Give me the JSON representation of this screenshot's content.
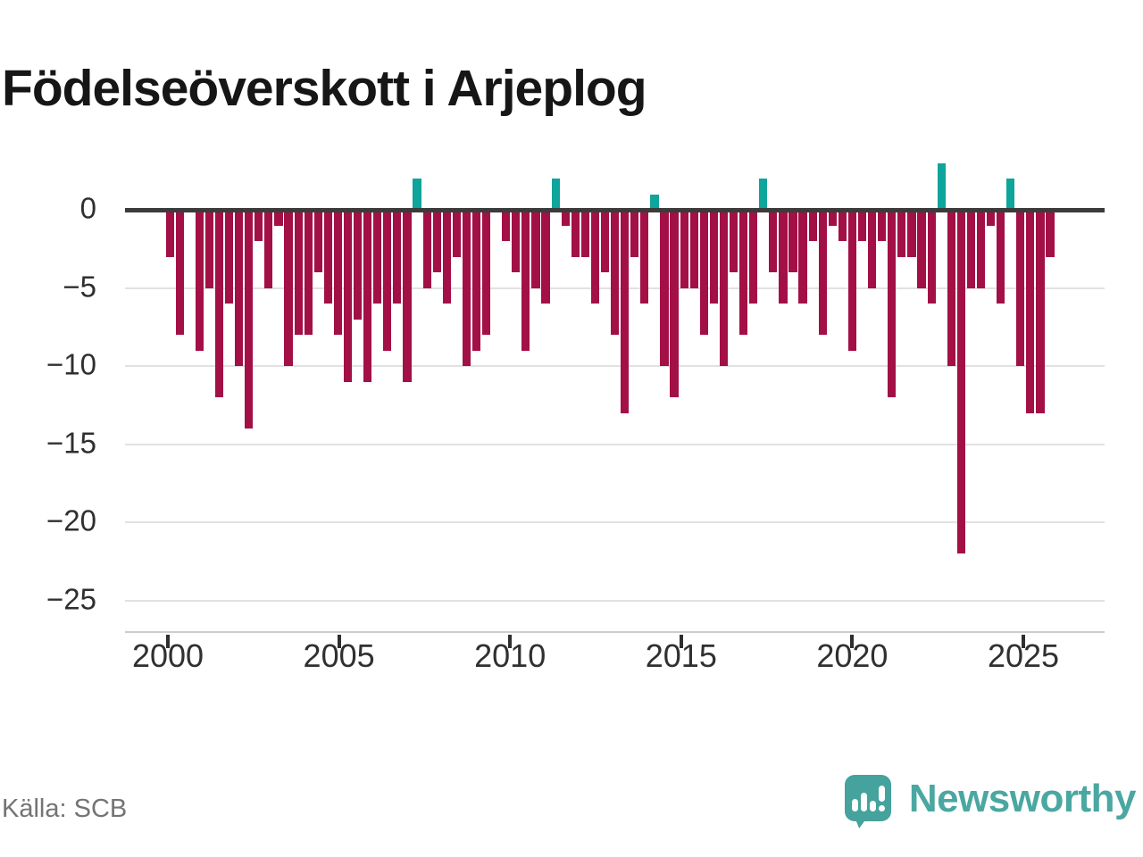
{
  "title": "Födelseöverskott i Arjeplog",
  "source_label": "Källa: SCB",
  "brand": {
    "name": "Newsworthy",
    "icon": "newsworthy-speech-bubble-bar-chart-icon",
    "icon_color": "#45a29c",
    "wordmark_color": "#4aa7a1"
  },
  "colors": {
    "negative_bar": "#a31045",
    "positive_bar": "#0da59c",
    "zero_line": "#3b3b3b",
    "gridline": "#e1e1e1",
    "axis_line": "#cdcdcd",
    "axis_text": "#303030",
    "title_text": "#161616",
    "source_text": "#747474"
  },
  "chart_data": {
    "type": "bar",
    "title": "Födelseöverskott i Arjeplog",
    "xlabel": "",
    "ylabel": "",
    "x_range_years": [
      2000,
      2026.3
    ],
    "ylim": [
      -25,
      3.5
    ],
    "grid": "horizontal",
    "legend": "none",
    "y_ticks": [
      0,
      -5,
      -10,
      -15,
      -20,
      -25
    ],
    "y_tick_labels": [
      "0",
      "−5",
      "−10",
      "−15",
      "−20",
      "−25"
    ],
    "x_tick_years": [
      2000,
      2005,
      2010,
      2015,
      2020,
      2025
    ],
    "x_tick_labels": [
      "2000",
      "2005",
      "2010",
      "2015",
      "2020",
      "2025"
    ],
    "series": [
      {
        "name": "Födelseöverskott",
        "values": [
          -3,
          -8,
          0,
          -9,
          -5,
          -12,
          -6,
          -10,
          -14,
          -2,
          -5,
          -1,
          -10,
          -8,
          -8,
          -4,
          -6,
          -8,
          -11,
          -7,
          -11,
          -6,
          -9,
          -6,
          -11,
          2,
          -5,
          -4,
          -6,
          -3,
          -10,
          -9,
          -8,
          0,
          -2,
          -4,
          -9,
          -5,
          -6,
          2,
          -1,
          -3,
          -3,
          -6,
          -4,
          -8,
          -13,
          -3,
          -6,
          1,
          -10,
          -12,
          -5,
          -5,
          -8,
          -6,
          -10,
          -4,
          -8,
          -6,
          2,
          -4,
          -6,
          -4,
          -6,
          -2,
          -8,
          -1,
          -2,
          -9,
          -2,
          -5,
          -2,
          -12,
          -3,
          -3,
          -5,
          -6,
          3,
          -10,
          -22,
          -5,
          -5,
          -1,
          -6,
          2,
          -10,
          -13,
          -13,
          -3
        ]
      }
    ]
  }
}
